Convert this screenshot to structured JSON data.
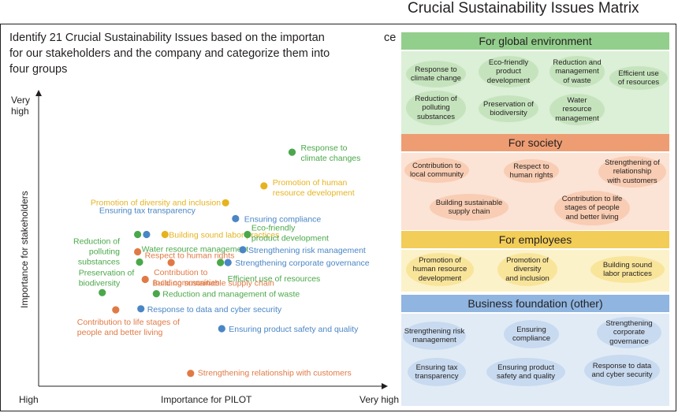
{
  "page_title": "Crucial Sustainability Issues Matrix",
  "intro": {
    "line1": "Identify 21 Crucial Sustainability Issues based on the importan",
    "suffix": "ce",
    "line2": "for our stakeholders and the company and categorize them into",
    "line3": "four groups"
  },
  "colors": {
    "environment": "#4aa84a",
    "society": "#e07a45",
    "employees": "#e6b320",
    "business": "#4a86c5"
  },
  "chart_data": {
    "type": "scatter",
    "xlabel": "Importance for PILOT",
    "ylabel": "Importance for stakeholders",
    "x_tick_low": "High",
    "x_tick_high": "Very high",
    "y_tick_high_1": "Very",
    "y_tick_high_2": "high",
    "xlim": [
      0,
      100
    ],
    "ylim": [
      0,
      100
    ],
    "grid": false,
    "points": [
      {
        "label": [
          "Response to",
          "climate changes"
        ],
        "group": "environment",
        "x": 87.6,
        "y": 87.3
      },
      {
        "label": [
          "Promotion of human",
          "resource development"
        ],
        "group": "employees",
        "x": 77.2,
        "y": 74.1
      },
      {
        "label": [
          "Promotion of diversity and inclusion"
        ],
        "group": "employees",
        "x": 63.0,
        "y": 67.5
      },
      {
        "label": [
          "Ensuring tax transparency"
        ],
        "group": "business",
        "x": 33.8,
        "y": 55.1
      },
      {
        "label": [
          "Building sound labor practices"
        ],
        "group": "employees",
        "x": 40.6,
        "y": 55.1
      },
      {
        "label": [
          "Ensuring compliance"
        ],
        "group": "business",
        "x": 66.7,
        "y": 61.3
      },
      {
        "label": [
          "Eco-friendly",
          "product development"
        ],
        "group": "environment",
        "x": 71.1,
        "y": 55.1
      },
      {
        "label": [
          "Water resource management"
        ],
        "group": "environment",
        "x": 30.5,
        "y": 55.1
      },
      {
        "label": [
          "Reduction of",
          "polluting",
          "substances"
        ],
        "group": "environment",
        "x": 31.2,
        "y": 44.3
      },
      {
        "label": [
          "Respect to human rights"
        ],
        "group": "society",
        "x": 30.5,
        "y": 48.3
      },
      {
        "label": [
          "Strengthening risk management"
        ],
        "group": "business",
        "x": 69.4,
        "y": 49.1
      },
      {
        "label": [
          "Contribution to",
          "local communities"
        ],
        "group": "society",
        "x": 42.9,
        "y": 44.1
      },
      {
        "label": [
          "Strengthening corporate governance"
        ],
        "group": "business",
        "x": 63.9,
        "y": 44.1
      },
      {
        "label": [
          "Efficient use of resources"
        ],
        "group": "environment",
        "x": 61.1,
        "y": 44.1
      },
      {
        "label": [
          "Building sustainable supply chain"
        ],
        "group": "society",
        "x": 33.3,
        "y": 37.5
      },
      {
        "label": [
          "Preservation of",
          "biodiversity"
        ],
        "group": "environment",
        "x": 17.4,
        "y": 32.3
      },
      {
        "label": [
          "Reduction and management of waste"
        ],
        "group": "environment",
        "x": 37.4,
        "y": 31.9
      },
      {
        "label": [
          "Response to data and cyber security"
        ],
        "group": "business",
        "x": 31.7,
        "y": 26.0
      },
      {
        "label": [
          "Contribution to life stages of",
          "people and better living"
        ],
        "group": "society",
        "x": 22.4,
        "y": 25.6
      },
      {
        "label": [
          "Ensuring product safety and quality"
        ],
        "group": "business",
        "x": 61.6,
        "y": 18.2
      },
      {
        "label": [
          "Strengthening relationship with customers"
        ],
        "group": "society",
        "x": 50.1,
        "y": 0.7
      }
    ]
  },
  "panels": [
    {
      "id": "environment",
      "title": "For global environment",
      "head_color": "#93cf8c",
      "body_color": "#dcefd7",
      "bubble_color": "#c5e4bd",
      "items": [
        {
          "lines": [
            "Response to",
            "climate change"
          ]
        },
        {
          "lines": [
            "Eco-friendly",
            "product",
            "development"
          ]
        },
        {
          "lines": [
            "Reduction and",
            "management",
            "of waste"
          ]
        },
        {
          "lines": [
            "Efficient use",
            "of resources"
          ]
        },
        {
          "lines": [
            "Reduction of",
            "polluting",
            "substances"
          ]
        },
        {
          "lines": [
            "Preservation of",
            "biodiversity"
          ]
        },
        {
          "lines": [
            "Water",
            "resource",
            "management"
          ]
        }
      ]
    },
    {
      "id": "society",
      "title": "For society",
      "head_color": "#ee9d73",
      "body_color": "#fbe3d6",
      "bubble_color": "#f8cdb3",
      "items": [
        {
          "lines": [
            "Contribution to",
            "local community"
          ]
        },
        {
          "lines": [
            "Respect to",
            "human rights"
          ]
        },
        {
          "lines": [
            "Strengthening of",
            "relationship",
            "with customers"
          ]
        },
        {
          "lines": [
            "Building sustainable",
            "supply chain"
          ]
        },
        {
          "lines": [
            "Contribution to life",
            "stages of people",
            "and better living"
          ]
        }
      ]
    },
    {
      "id": "employees",
      "title": "For employees",
      "head_color": "#f2cd58",
      "body_color": "#fcf2c9",
      "bubble_color": "#f8e59a",
      "items": [
        {
          "lines": [
            "Promotion of",
            "human resource",
            "development"
          ]
        },
        {
          "lines": [
            "Promotion of",
            "diversity",
            "and inclusion"
          ]
        },
        {
          "lines": [
            "Building sound",
            "labor practices"
          ]
        }
      ]
    },
    {
      "id": "business",
      "title": "Business foundation (other)",
      "head_color": "#8fb5e0",
      "body_color": "#e1ebf6",
      "bubble_color": "#c8daef",
      "items": [
        {
          "lines": [
            "Strengthening risk",
            "management"
          ]
        },
        {
          "lines": [
            "Ensuring",
            "compliance"
          ]
        },
        {
          "lines": [
            "Strengthening",
            "corporate",
            "governance"
          ]
        },
        {
          "lines": [
            "Ensuring tax",
            "transparency"
          ]
        },
        {
          "lines": [
            "Ensuring product",
            "safety and quality"
          ]
        },
        {
          "lines": [
            "Response to data",
            "and cyber security"
          ]
        }
      ]
    }
  ]
}
